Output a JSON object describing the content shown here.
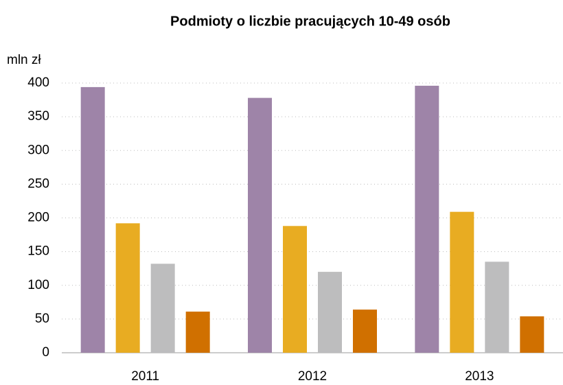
{
  "chart_data": {
    "type": "bar",
    "title": "Podmioty o liczbie pracujących 10-49 osób",
    "y_label": "mln zł",
    "categories": [
      "2011",
      "2012",
      "2013"
    ],
    "series": [
      {
        "color": "#9e84a8",
        "values": [
          394,
          378,
          396
        ]
      },
      {
        "color": "#e8ac22",
        "values": [
          192,
          188,
          209
        ]
      },
      {
        "color": "#bdbdbe",
        "values": [
          132,
          120,
          135
        ]
      },
      {
        "color": "#d07000",
        "values": [
          61,
          64,
          54
        ]
      }
    ],
    "ylim": [
      0,
      400
    ],
    "yticks": [
      0,
      50,
      100,
      150,
      200,
      250,
      300,
      350,
      400
    ],
    "grid": true
  }
}
